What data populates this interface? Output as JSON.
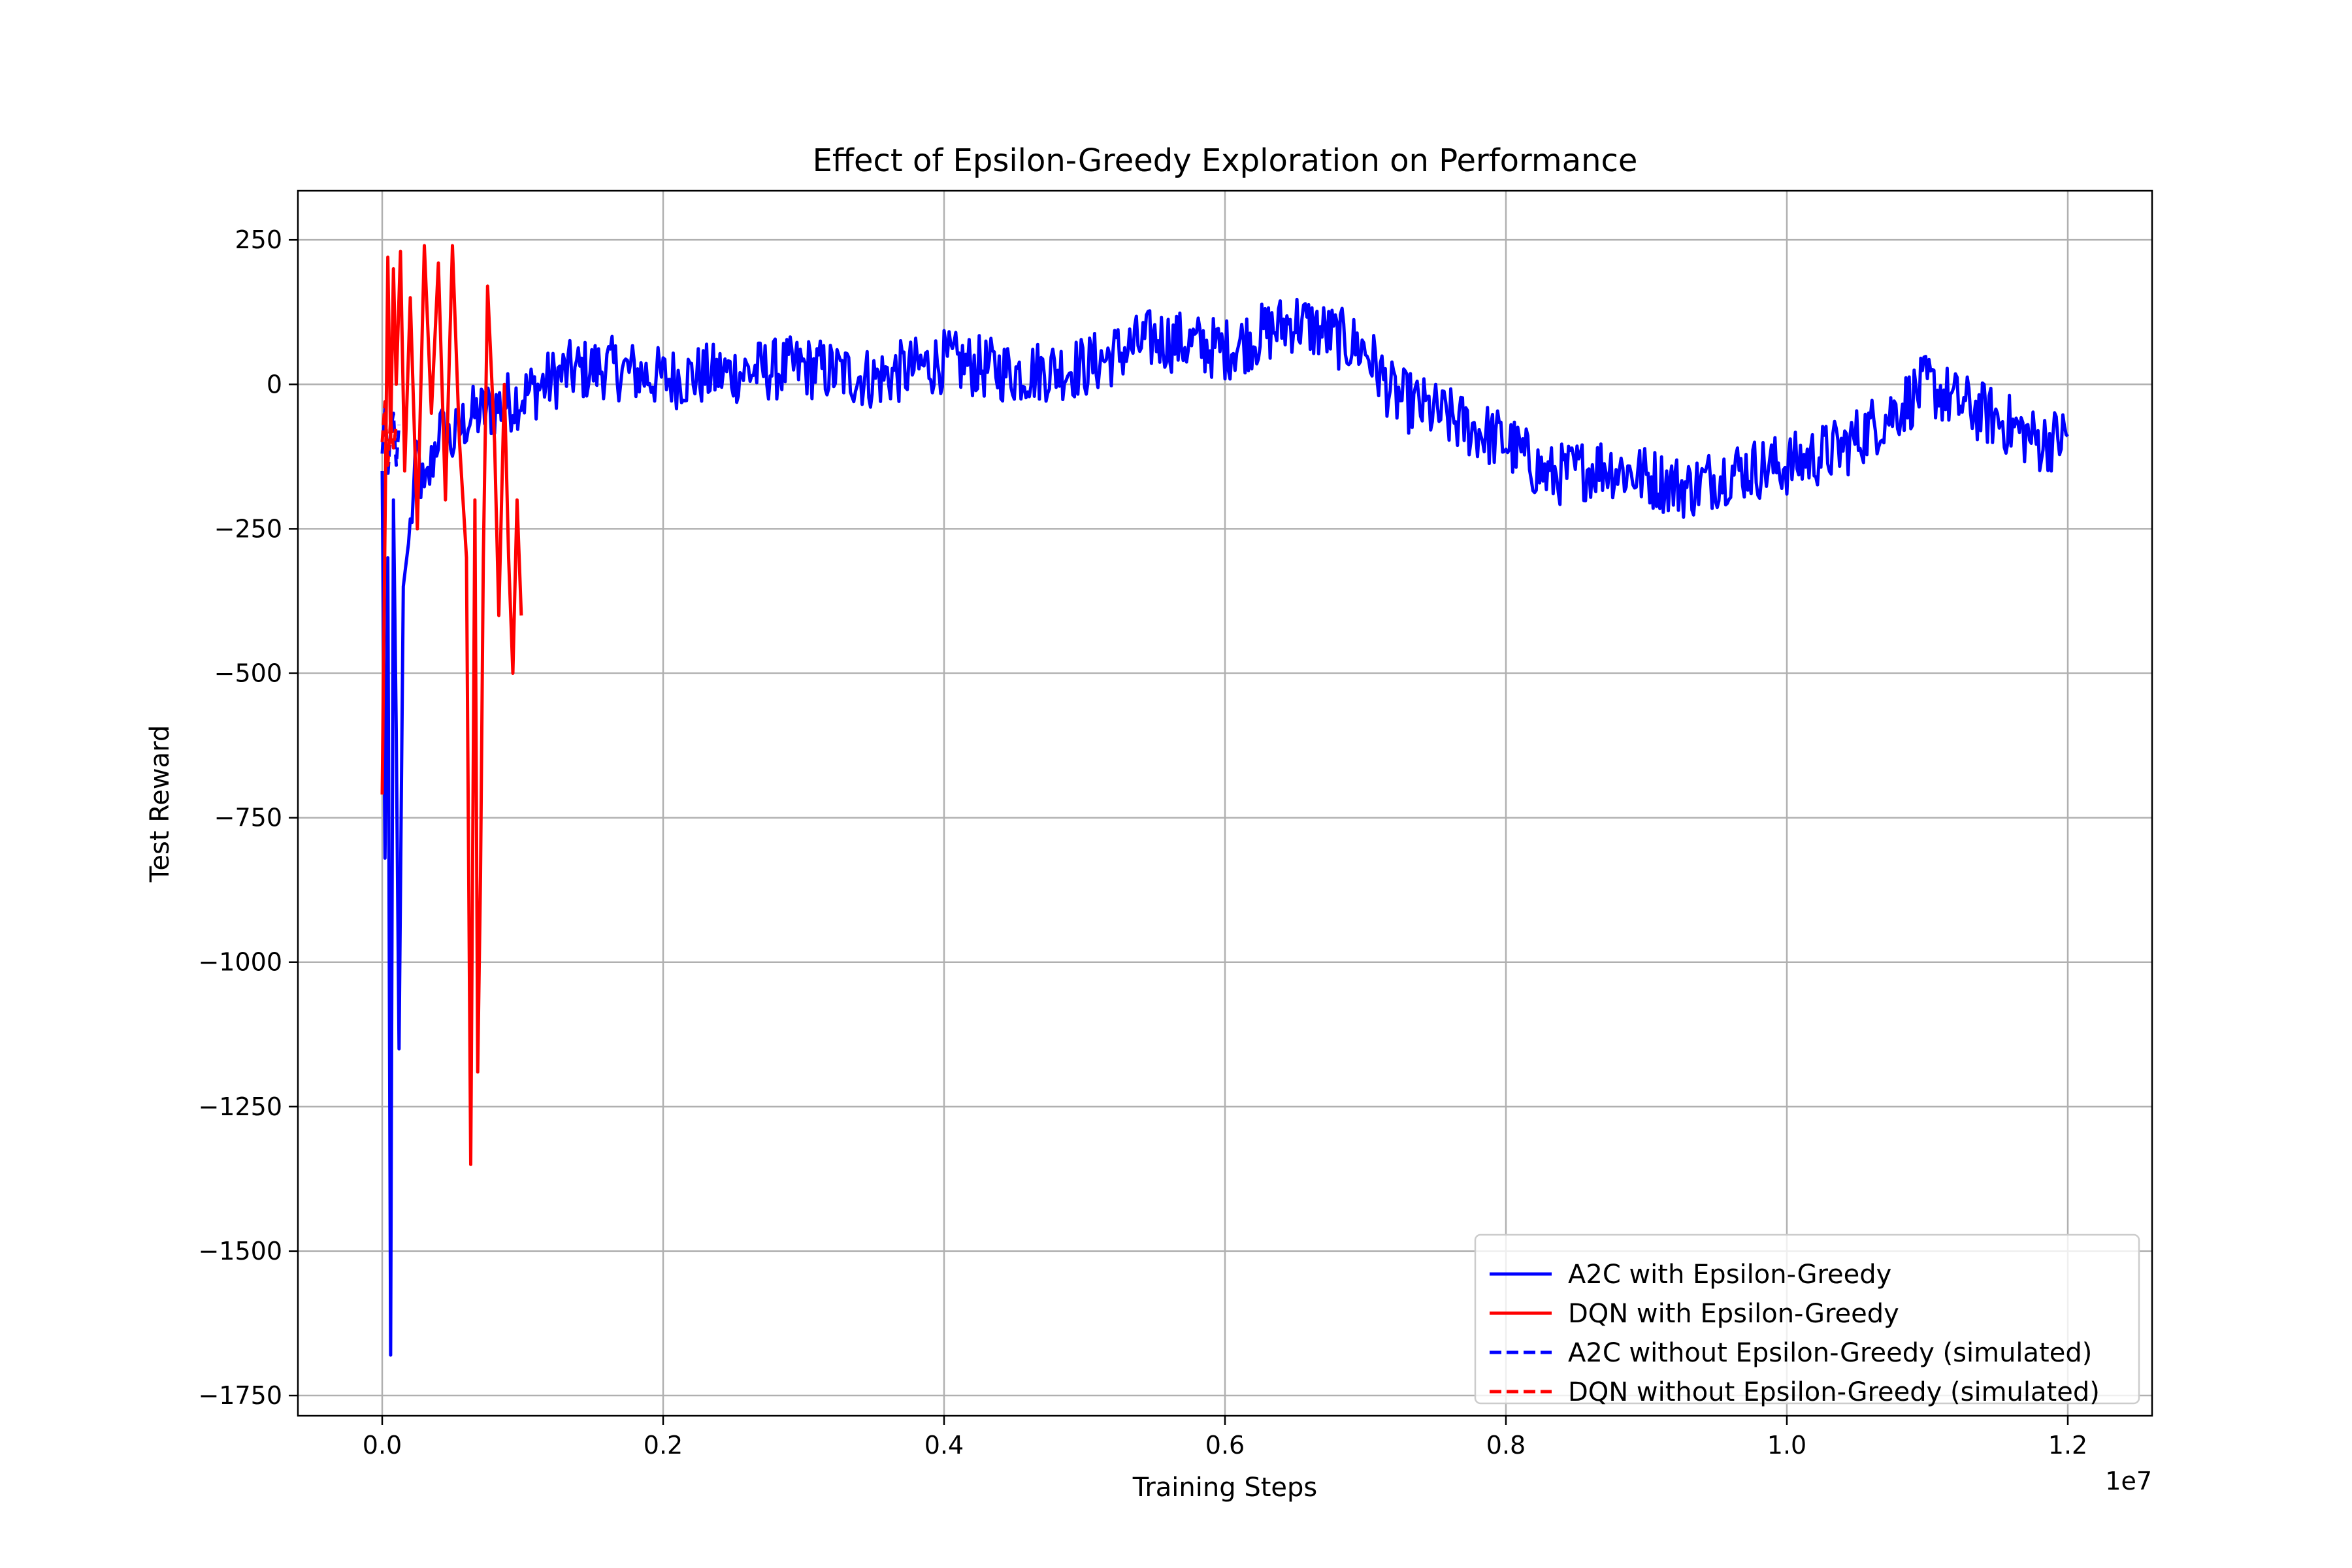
{
  "chart_data": {
    "type": "line",
    "title": "Effect of Epsilon-Greedy Exploration on Performance",
    "xlabel": "Training Steps",
    "ylabel": "Test Reward",
    "x_offset_label": "1e7",
    "xlim": [
      -0.06,
      1.26
    ],
    "ylim": [
      -1785,
      335
    ],
    "x_ticks": [
      0.0,
      0.2,
      0.4,
      0.6,
      0.8,
      1.0,
      1.2
    ],
    "x_tick_labels": [
      "0.0",
      "0.2",
      "0.4",
      "0.6",
      "0.8",
      "1.0",
      "1.2"
    ],
    "y_ticks": [
      250,
      0,
      -250,
      -500,
      -750,
      -1000,
      -1250,
      -1500,
      -1750
    ],
    "y_tick_labels": [
      "250",
      "0",
      "−250",
      "−500",
      "−750",
      "−1000",
      "−1250",
      "−1500",
      "−1750"
    ],
    "grid": true,
    "legend_position": "lower-right",
    "series": [
      {
        "name": "A2C with Epsilon-Greedy",
        "color": "#0000ff",
        "style": "solid",
        "x": [
          0.0,
          0.002,
          0.004,
          0.006,
          0.008,
          0.01,
          0.012,
          0.015,
          0.02,
          0.025,
          0.03,
          0.04,
          0.05,
          0.06,
          0.08,
          0.1,
          0.13,
          0.16,
          0.2,
          0.25,
          0.3,
          0.35,
          0.4,
          0.45,
          0.5,
          0.55,
          0.6,
          0.65,
          0.7,
          0.72,
          0.75,
          0.8,
          0.83,
          0.87,
          0.9,
          0.93,
          0.96,
          1.0,
          1.04,
          1.08,
          1.1,
          1.12,
          1.15,
          1.18,
          1.2
        ],
        "y": [
          -150,
          -820,
          -300,
          -1680,
          -200,
          -600,
          -1150,
          -350,
          -250,
          -120,
          -200,
          -80,
          -100,
          -60,
          -40,
          -20,
          20,
          30,
          10,
          20,
          30,
          10,
          40,
          20,
          30,
          80,
          60,
          110,
          60,
          -20,
          -50,
          -100,
          -160,
          -140,
          -160,
          -180,
          -150,
          -140,
          -110,
          -40,
          0,
          -30,
          -60,
          -100,
          -90
        ],
        "noise": 55
      },
      {
        "name": "DQN with Epsilon-Greedy",
        "color": "#ff0000",
        "style": "solid",
        "x": [
          0.0,
          0.002,
          0.004,
          0.006,
          0.008,
          0.01,
          0.013,
          0.016,
          0.02,
          0.025,
          0.03,
          0.035,
          0.04,
          0.045,
          0.05,
          0.055,
          0.06,
          0.063,
          0.066,
          0.068,
          0.07,
          0.072,
          0.075,
          0.08,
          0.083,
          0.087,
          0.09,
          0.093,
          0.096,
          0.099
        ],
        "y": [
          -710,
          -250,
          220,
          -100,
          200,
          0,
          230,
          -150,
          150,
          -250,
          240,
          -50,
          210,
          -200,
          240,
          -100,
          -300,
          -1350,
          -200,
          -1190,
          -850,
          -300,
          170,
          -100,
          -400,
          0,
          -300,
          -500,
          -200,
          -400
        ],
        "noise": 0
      },
      {
        "name": "A2C without Epsilon-Greedy (simulated)",
        "color": "#0000ff",
        "style": "dashed",
        "x": [
          0.0,
          0.002,
          0.004,
          0.006,
          0.008,
          0.01,
          0.012
        ],
        "y": [
          -120,
          -40,
          -160,
          -80,
          -50,
          -140,
          -70
        ],
        "noise": 0
      },
      {
        "name": "DQN without Epsilon-Greedy (simulated)",
        "color": "#ff0000",
        "style": "dashed",
        "x": [
          0.0,
          0.002,
          0.004,
          0.006,
          0.008,
          0.01
        ],
        "y": [
          -100,
          -30,
          -140,
          -60,
          -110,
          -70
        ],
        "noise": 0
      }
    ]
  }
}
